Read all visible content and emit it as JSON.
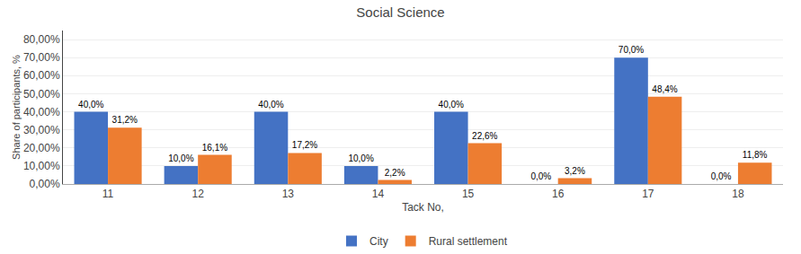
{
  "chart_data": {
    "type": "bar",
    "title": "Social Science",
    "xlabel": "Tack No,",
    "ylabel": "Share of participants, %",
    "categories": [
      "11",
      "12",
      "13",
      "14",
      "15",
      "16",
      "17",
      "18"
    ],
    "series": [
      {
        "name": "City",
        "color": "#4472C4",
        "values": [
          40.0,
          10.0,
          40.0,
          10.0,
          40.0,
          0.0,
          70.0,
          0.0
        ],
        "value_labels": [
          "40,0%",
          "10,0%",
          "40,0%",
          "10,0%",
          "40,0%",
          "0,0%",
          "70,0%",
          "0,0%"
        ]
      },
      {
        "name": "Rural settlement",
        "color": "#ED7D31",
        "values": [
          31.2,
          16.1,
          17.2,
          2.2,
          22.6,
          3.2,
          48.4,
          11.8
        ],
        "value_labels": [
          "31,2%",
          "16,1%",
          "17,2%",
          "2,2%",
          "22,6%",
          "3,2%",
          "48,4%",
          "11,8%"
        ]
      }
    ],
    "ylim": [
      0,
      85
    ],
    "yticks": [
      {
        "value": 0,
        "label": "0,00%"
      },
      {
        "value": 10,
        "label": "10,00%"
      },
      {
        "value": 20,
        "label": "20,00%"
      },
      {
        "value": 30,
        "label": "30,00%"
      },
      {
        "value": 40,
        "label": "40,00%"
      },
      {
        "value": 50,
        "label": "50,00%"
      },
      {
        "value": 60,
        "label": "60,00%"
      },
      {
        "value": 70,
        "label": "70,00%"
      },
      {
        "value": 80,
        "label": "80,00%"
      }
    ],
    "grid": true,
    "legend": "bottom",
    "data_labels": true
  }
}
